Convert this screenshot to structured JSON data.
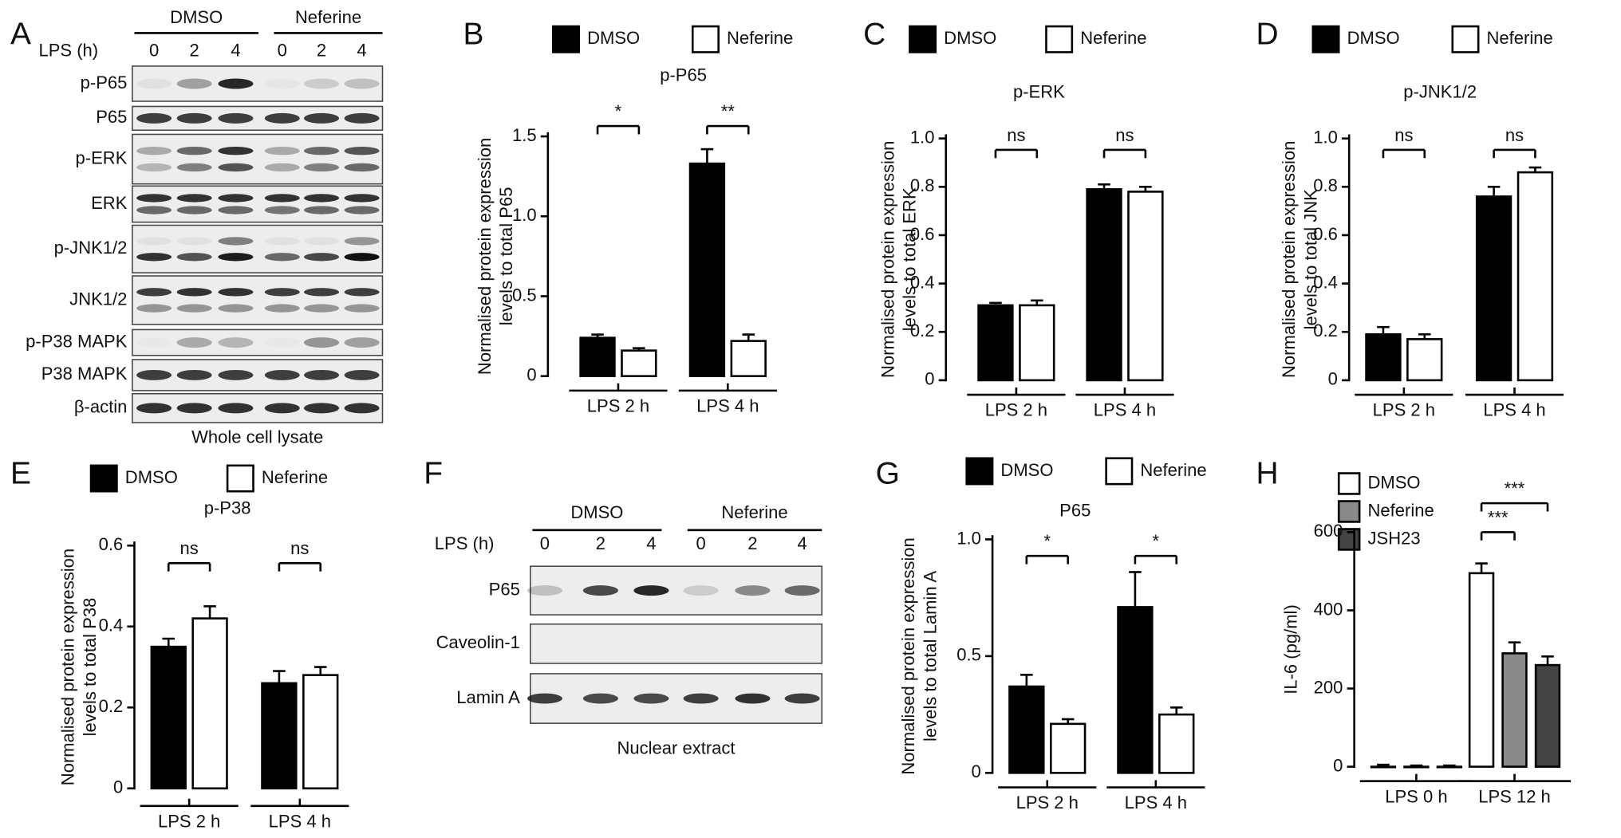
{
  "chart_data": [
    {
      "panel": "B",
      "type": "bar",
      "title": "p-P65",
      "ylabel": [
        "Normalised protein expression",
        "levels to total P65"
      ],
      "categories": [
        "LPS 2 h",
        "LPS 4 h"
      ],
      "series": [
        {
          "name": "DMSO",
          "color": "#000000",
          "values": [
            0.24,
            1.33
          ],
          "errors": [
            0.02,
            0.09
          ]
        },
        {
          "name": "Neferine",
          "color": "#ffffff",
          "values": [
            0.16,
            0.22
          ],
          "errors": [
            0.015,
            0.04
          ]
        }
      ],
      "ylim": [
        0,
        1.5
      ],
      "yticks": [
        0,
        0.5,
        {
          "value": 1,
          "label": "1.0"
        },
        1.5
      ],
      "annotations": [
        "*",
        "**"
      ]
    },
    {
      "panel": "C",
      "type": "bar",
      "title": "p-ERK",
      "ylabel": [
        "Normalised protein expression",
        "levels to total ERK"
      ],
      "categories": [
        "LPS 2 h",
        "LPS 4 h"
      ],
      "series": [
        {
          "name": "DMSO",
          "color": "#000000",
          "values": [
            0.31,
            0.79
          ],
          "errors": [
            0.01,
            0.02
          ]
        },
        {
          "name": "Neferine",
          "color": "#ffffff",
          "values": [
            0.31,
            0.78
          ],
          "errors": [
            0.02,
            0.02
          ]
        }
      ],
      "ylim": [
        0,
        1
      ],
      "yticks": [
        0,
        0.2,
        0.4,
        0.6,
        0.8,
        {
          "value": 1,
          "label": "1.0"
        }
      ],
      "annotations": [
        "ns",
        "ns"
      ]
    },
    {
      "panel": "D",
      "type": "bar",
      "title": "p-JNK1/2",
      "ylabel": [
        "Normalised protein expression",
        "levels to total JNK"
      ],
      "categories": [
        "LPS 2 h",
        "LPS 4 h"
      ],
      "series": [
        {
          "name": "DMSO",
          "color": "#000000",
          "values": [
            0.19,
            0.76
          ],
          "errors": [
            0.03,
            0.04
          ]
        },
        {
          "name": "Neferine",
          "color": "#ffffff",
          "values": [
            0.17,
            0.86
          ],
          "errors": [
            0.02,
            0.02
          ]
        }
      ],
      "ylim": [
        0,
        1
      ],
      "yticks": [
        0,
        0.2,
        0.4,
        0.6,
        0.8,
        {
          "value": 1,
          "label": "1.0"
        }
      ],
      "annotations": [
        "ns",
        "ns"
      ]
    },
    {
      "panel": "E",
      "type": "bar",
      "title": "p-P38",
      "ylabel": [
        "Normalised protein expression",
        "levels to total P38"
      ],
      "categories": [
        "LPS 2 h",
        "LPS 4 h"
      ],
      "series": [
        {
          "name": "DMSO",
          "color": "#000000",
          "values": [
            0.35,
            0.26
          ],
          "errors": [
            0.02,
            0.03
          ]
        },
        {
          "name": "Neferine",
          "color": "#ffffff",
          "values": [
            0.42,
            0.28
          ],
          "errors": [
            0.03,
            0.02
          ]
        }
      ],
      "ylim": [
        0,
        0.6
      ],
      "yticks": [
        0,
        0.2,
        0.4,
        0.6
      ],
      "annotations": [
        "ns",
        "ns"
      ]
    },
    {
      "panel": "G",
      "type": "bar",
      "title": "P65",
      "ylabel": [
        "Normalised protein expression",
        "levels to total Lamin A"
      ],
      "categories": [
        "LPS 2 h",
        "LPS 4 h"
      ],
      "series": [
        {
          "name": "DMSO",
          "color": "#000000",
          "values": [
            0.37,
            0.71
          ],
          "errors": [
            0.05,
            0.15
          ]
        },
        {
          "name": "Neferine",
          "color": "#ffffff",
          "values": [
            0.21,
            0.25
          ],
          "errors": [
            0.02,
            0.03
          ]
        }
      ],
      "ylim": [
        0,
        1
      ],
      "yticks": [
        0,
        0.5,
        {
          "value": 1,
          "label": "1.0"
        }
      ],
      "annotations": [
        "*",
        "*"
      ]
    },
    {
      "panel": "H",
      "type": "bar",
      "ylabel": [
        "IL-6 (pg/ml)"
      ],
      "categories": [
        "LPS 0 h",
        "LPS 12 h"
      ],
      "series": [
        {
          "name": "DMSO",
          "color": "#ffffff",
          "values": [
            0,
            495
          ],
          "errors": [
            5,
            25
          ]
        },
        {
          "name": "Neferine",
          "color": "#8a8a8a",
          "values": [
            0,
            290
          ],
          "errors": [
            3,
            28
          ]
        },
        {
          "name": "JSH23",
          "color": "#444444",
          "values": [
            0,
            260
          ],
          "errors": [
            3,
            22
          ]
        }
      ],
      "ylim": [
        0,
        600
      ],
      "yticks": [
        0,
        200,
        400,
        600
      ],
      "annotations": [
        "***",
        "***"
      ]
    }
  ],
  "blots": [
    {
      "panel": "A",
      "groups": [
        "DMSO",
        "Neferine"
      ],
      "time_label": "LPS (h)",
      "times": [
        0,
        2,
        4,
        0,
        2,
        4
      ],
      "rows": [
        "p-P65",
        "P65",
        "p-ERK",
        "ERK",
        "p-JNK1/2",
        "JNK1/2",
        "p-P38 MAPK",
        "P38 MAPK",
        "β-actin"
      ],
      "caption": "Whole cell lysate"
    },
    {
      "panel": "F",
      "groups": [
        "DMSO",
        "Neferine"
      ],
      "time_label": "LPS (h)",
      "times": [
        0,
        2,
        4,
        0,
        2,
        4
      ],
      "rows": [
        "P65",
        "Caveolin-1",
        "Lamin A"
      ],
      "caption": "Nuclear extract"
    }
  ]
}
